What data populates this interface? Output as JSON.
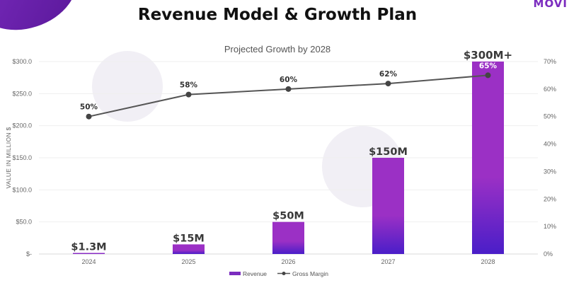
{
  "header": {
    "title": "Revenue Model & Growth Plan",
    "logo_text": "MOVI"
  },
  "colors": {
    "bar_top": "#9b30c5",
    "bar_bottom": "#4a1ec8",
    "line": "#555555",
    "accent": "#7b2cbf"
  },
  "chart_data": {
    "type": "bar",
    "title": "Projected Growth by 2028",
    "ylabel": "VALUE IN MILLION $",
    "categories": [
      "2024",
      "2025",
      "2026",
      "2027",
      "2028"
    ],
    "ylim": [
      0,
      300
    ],
    "y2lim": [
      0,
      70
    ],
    "y_ticks": [
      "$-",
      "$50.0",
      "$100.0",
      "$150.0",
      "$200.0",
      "$250.0",
      "$300.0"
    ],
    "y2_ticks": [
      "0%",
      "10%",
      "20%",
      "30%",
      "40%",
      "50%",
      "60%",
      "70%"
    ],
    "series": [
      {
        "name": "Revenue",
        "type": "bar",
        "values": [
          1.3,
          15,
          50,
          150,
          300
        ],
        "labels": [
          "$1.3M",
          "$15M",
          "$50M",
          "$150M",
          "$300M+"
        ]
      },
      {
        "name": "Gross Margin",
        "type": "line",
        "axis": "right",
        "values": [
          50,
          58,
          60,
          62,
          65
        ],
        "labels": [
          "50%",
          "58%",
          "60%",
          "62%",
          "65%"
        ]
      }
    ],
    "legend_position": "bottom",
    "grid": "horizontal"
  }
}
